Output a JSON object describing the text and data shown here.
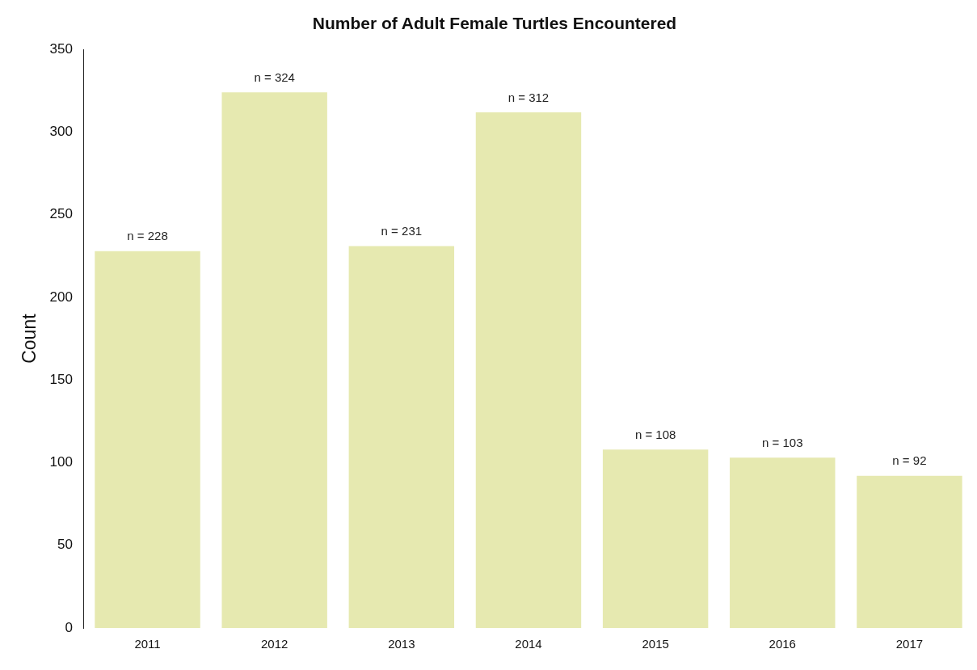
{
  "chart_data": {
    "type": "bar",
    "title": "Number of Adult Female Turtles Encountered",
    "ylabel": "Count",
    "categories": [
      "2011",
      "2012",
      "2013",
      "2014",
      "2015",
      "2016",
      "2017"
    ],
    "values": [
      228,
      324,
      231,
      312,
      108,
      103,
      92
    ],
    "value_labels": [
      "n = 228",
      "n = 324",
      "n = 231",
      "n = 312",
      "n = 108",
      "n = 103",
      "n = 92"
    ],
    "color": "#e6e9b0",
    "ylim": [
      0,
      350
    ],
    "yticks": [
      0,
      50,
      100,
      150,
      200,
      250,
      300,
      350
    ],
    "grid": false,
    "legend": false
  }
}
